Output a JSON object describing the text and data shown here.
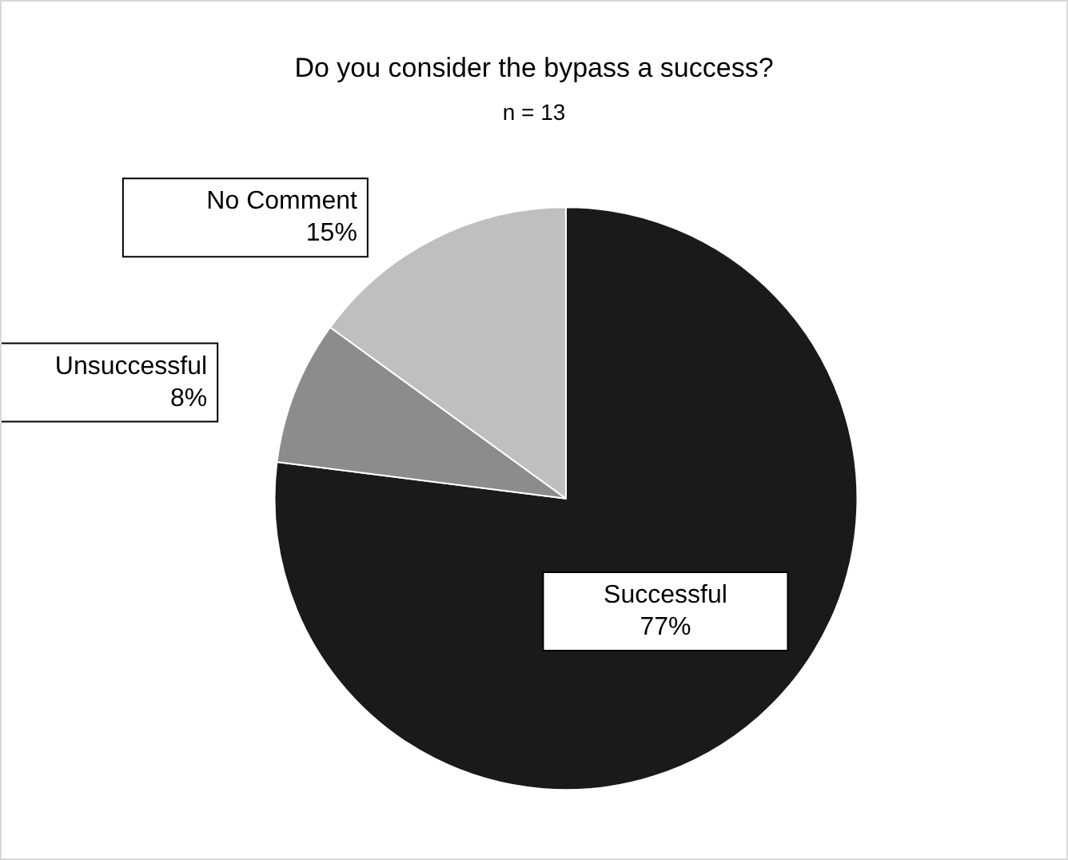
{
  "chart_data": {
    "type": "pie",
    "title": "Do you consider the bypass a success?",
    "subtitle": "n = 13",
    "categories": [
      "Successful",
      "Unsuccessful",
      "No Comment"
    ],
    "values": [
      77,
      8,
      15
    ],
    "value_labels": [
      "77%",
      "8%",
      "15%"
    ],
    "colors": [
      "#1a1a1a",
      "#8c8c8c",
      "#bfbfbf"
    ],
    "legend": false
  }
}
